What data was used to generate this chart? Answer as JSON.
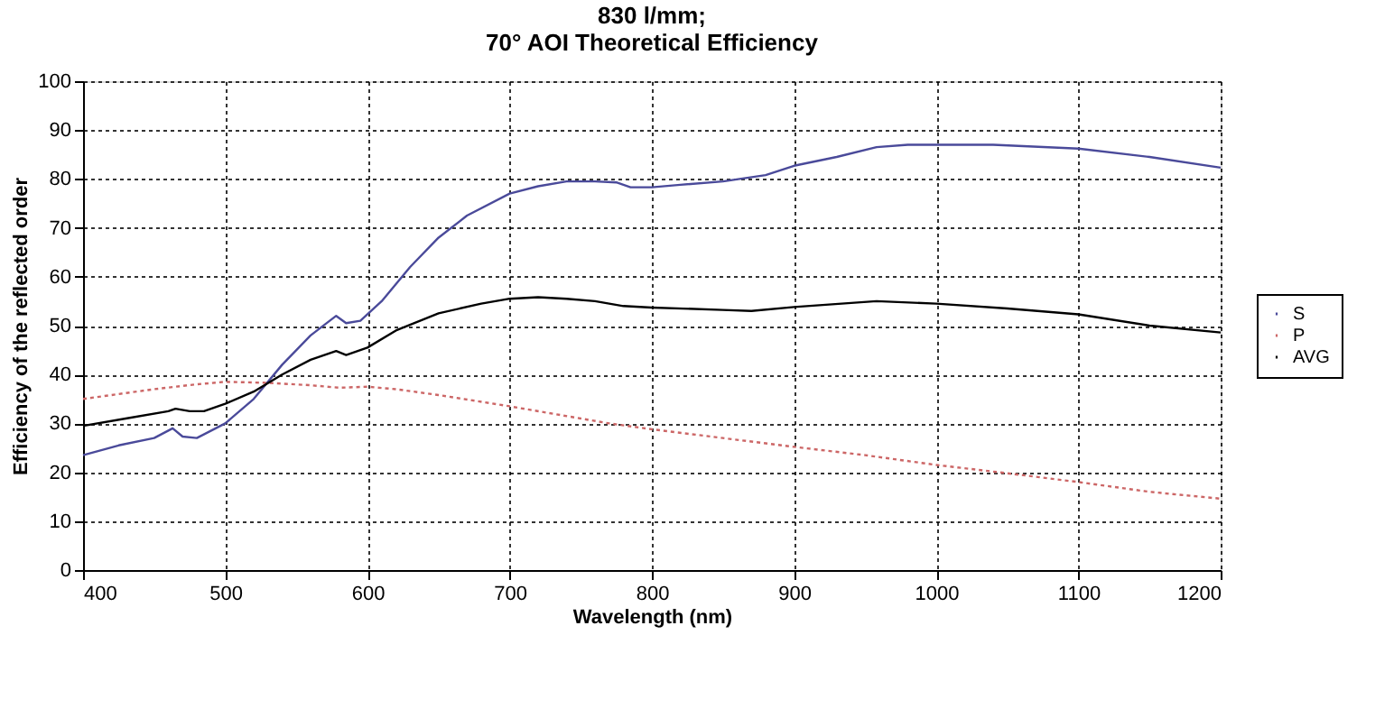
{
  "chart_data": {
    "type": "line",
    "title": [
      "830 l/mm;",
      "70° AOI Theoretical Efficiency"
    ],
    "xlabel": "Wavelength (nm)",
    "ylabel": "Efficiency of the reflected order",
    "xlim": [
      400,
      1200
    ],
    "xticks": [
      400,
      500,
      600,
      700,
      800,
      900,
      1000,
      1100,
      1200
    ],
    "ylim": [
      0,
      100
    ],
    "yticks": [
      0,
      10,
      20,
      30,
      40,
      50,
      60,
      70,
      80,
      90,
      100
    ],
    "grid": true,
    "legend": "right",
    "marker": "none",
    "series": [
      {
        "name": "S",
        "color": "#4a4a9a",
        "line_style": "solid",
        "x": [
          400,
          425,
          450,
          463,
          470,
          480,
          500,
          520,
          540,
          560,
          578,
          585,
          595,
          610,
          630,
          650,
          670,
          700,
          720,
          740,
          760,
          775,
          785,
          800,
          820,
          850,
          880,
          900,
          930,
          958,
          980,
          1000,
          1040,
          1100,
          1150,
          1200
        ],
        "values": [
          23.5,
          25.5,
          27,
          29,
          27.3,
          27,
          30,
          35,
          42,
          48,
          52,
          50.5,
          51,
          55,
          62,
          68,
          72.5,
          77,
          78.5,
          79.5,
          79.5,
          79.3,
          78.3,
          78.3,
          78.8,
          79.5,
          80.8,
          82.7,
          84.5,
          86.5,
          87,
          87,
          87,
          86.2,
          84.5,
          82.3
        ]
      },
      {
        "name": "P",
        "color": "#cc6666",
        "line_style": "dotted",
        "x": [
          400,
          450,
          480,
          500,
          530,
          560,
          580,
          600,
          620,
          650,
          700,
          750,
          770,
          800,
          850,
          900,
          950,
          1000,
          1050,
          1100,
          1150,
          1200
        ],
        "values": [
          35,
          37,
          38,
          38.5,
          38.3,
          37.8,
          37.3,
          37.5,
          37,
          35.8,
          33.5,
          31,
          30,
          28.8,
          27,
          25.2,
          23.5,
          21.5,
          19.8,
          18,
          16,
          14.6
        ]
      },
      {
        "name": "AVG",
        "color": "#000000",
        "line_style": "solid",
        "x": [
          400,
          430,
          460,
          465,
          475,
          485,
          500,
          520,
          540,
          560,
          578,
          585,
          600,
          620,
          650,
          680,
          700,
          720,
          740,
          760,
          780,
          800,
          850,
          870,
          900,
          958,
          1000,
          1050,
          1100,
          1150,
          1200
        ],
        "values": [
          29.5,
          31,
          32.5,
          33,
          32.5,
          32.5,
          34,
          36.5,
          40,
          43,
          44.8,
          44,
          45.5,
          49,
          52.5,
          54.5,
          55.5,
          55.8,
          55.5,
          55,
          54,
          53.7,
          53.2,
          53,
          53.8,
          55,
          54.5,
          53.5,
          52.3,
          50,
          48.6
        ]
      }
    ]
  }
}
